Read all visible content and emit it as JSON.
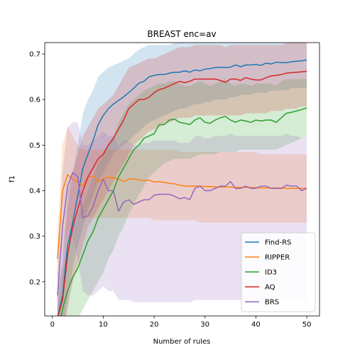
{
  "chart_data": {
    "type": "line",
    "title": "BREAST enc=av",
    "xlabel": "Number of rules",
    "ylabel": "f1",
    "xlim": [
      -1.5,
      52.5
    ],
    "ylim": [
      0.125,
      0.725
    ],
    "xticks": [
      0,
      10,
      20,
      30,
      40,
      50
    ],
    "yticks": [
      0.2,
      0.3,
      0.4,
      0.5,
      0.6,
      0.7
    ],
    "legend_position": "lower-right",
    "grid": false,
    "series": [
      {
        "name": "Find-RS",
        "color": "#1f77b4",
        "x": [
          1,
          2,
          3,
          4,
          5,
          6,
          7,
          8,
          9,
          10,
          11,
          12,
          13,
          14,
          15,
          16,
          17,
          18,
          19,
          20,
          21,
          22,
          23,
          24,
          25,
          26,
          27,
          28,
          29,
          30,
          31,
          32,
          33,
          34,
          35,
          36,
          37,
          38,
          39,
          40,
          41,
          42,
          43,
          44,
          45,
          46,
          47,
          48,
          49,
          50
        ],
        "y": [
          0.12,
          0.17,
          0.28,
          0.33,
          0.39,
          0.45,
          0.48,
          0.51,
          0.545,
          0.565,
          0.58,
          0.59,
          0.598,
          0.606,
          0.615,
          0.625,
          0.636,
          0.64,
          0.65,
          0.653,
          0.655,
          0.655,
          0.658,
          0.66,
          0.66,
          0.663,
          0.66,
          0.665,
          0.663,
          0.667,
          0.668,
          0.67,
          0.671,
          0.67,
          0.671,
          0.676,
          0.672,
          0.676,
          0.676,
          0.677,
          0.675,
          0.68,
          0.678,
          0.682,
          0.681,
          0.681,
          0.683,
          0.684,
          0.685,
          0.687
        ],
        "lower": [
          0.06,
          0.08,
          0.16,
          0.23,
          0.28,
          0.32,
          0.36,
          0.39,
          0.42,
          0.44,
          0.46,
          0.48,
          0.49,
          0.5,
          0.51,
          0.52,
          0.53,
          0.54,
          0.55,
          0.555,
          0.56,
          0.565,
          0.57,
          0.575,
          0.58,
          0.58,
          0.585,
          0.59,
          0.59,
          0.595,
          0.595,
          0.6,
          0.6,
          0.6,
          0.605,
          0.605,
          0.61,
          0.61,
          0.61,
          0.615,
          0.615,
          0.615,
          0.62,
          0.62,
          0.62,
          0.62,
          0.625,
          0.625,
          0.625,
          0.625
        ],
        "upper": [
          0.18,
          0.26,
          0.4,
          0.44,
          0.5,
          0.57,
          0.6,
          0.62,
          0.65,
          0.66,
          0.67,
          0.675,
          0.68,
          0.685,
          0.69,
          0.7,
          0.71,
          0.715,
          0.72,
          0.72,
          0.72,
          0.72,
          0.72,
          0.725,
          0.725,
          0.725,
          0.725,
          0.725,
          0.725,
          0.725,
          0.725,
          0.725,
          0.725,
          0.725,
          0.725,
          0.725,
          0.725,
          0.725,
          0.725,
          0.725,
          0.725,
          0.725,
          0.725,
          0.725,
          0.725,
          0.725,
          0.725,
          0.725,
          0.725,
          0.725
        ]
      },
      {
        "name": "RIPPER",
        "color": "#ff7f0e",
        "x": [
          1,
          2,
          3,
          4,
          5,
          6,
          7,
          8,
          9,
          10,
          11,
          12,
          13,
          14,
          15,
          16,
          17,
          18,
          19,
          20,
          21,
          22,
          23,
          24,
          25,
          26,
          27,
          28,
          29,
          30,
          31,
          32,
          33,
          34,
          35,
          36,
          37,
          38,
          39,
          40,
          41,
          42,
          43,
          44,
          45,
          46,
          47,
          48,
          49,
          50
        ],
        "y": [
          0.25,
          0.4,
          0.435,
          0.425,
          0.42,
          0.41,
          0.43,
          0.432,
          0.42,
          0.425,
          0.43,
          0.428,
          0.426,
          0.42,
          0.425,
          0.426,
          0.424,
          0.422,
          0.423,
          0.419,
          0.42,
          0.418,
          0.416,
          0.415,
          0.412,
          0.41,
          0.41,
          0.41,
          0.41,
          0.409,
          0.409,
          0.408,
          0.408,
          0.408,
          0.408,
          0.407,
          0.407,
          0.407,
          0.407,
          0.407,
          0.406,
          0.406,
          0.406,
          0.406,
          0.406,
          0.405,
          0.405,
          0.405,
          0.405,
          0.405
        ],
        "lower": [
          0.2,
          0.26,
          0.31,
          0.33,
          0.34,
          0.34,
          0.34,
          0.34,
          0.34,
          0.34,
          0.34,
          0.34,
          0.34,
          0.34,
          0.34,
          0.34,
          0.34,
          0.34,
          0.34,
          0.335,
          0.335,
          0.335,
          0.335,
          0.335,
          0.335,
          0.335,
          0.335,
          0.335,
          0.33,
          0.33,
          0.33,
          0.33,
          0.33,
          0.33,
          0.33,
          0.33,
          0.33,
          0.33,
          0.33,
          0.33,
          0.33,
          0.33,
          0.33,
          0.33,
          0.33,
          0.33,
          0.33,
          0.33,
          0.33,
          0.33
        ],
        "upper": [
          0.3,
          0.5,
          0.54,
          0.52,
          0.5,
          0.49,
          0.49,
          0.49,
          0.49,
          0.49,
          0.49,
          0.49,
          0.49,
          0.49,
          0.49,
          0.49,
          0.49,
          0.49,
          0.49,
          0.49,
          0.49,
          0.49,
          0.49,
          0.49,
          0.485,
          0.485,
          0.485,
          0.485,
          0.485,
          0.485,
          0.485,
          0.485,
          0.485,
          0.485,
          0.485,
          0.485,
          0.485,
          0.485,
          0.485,
          0.485,
          0.48,
          0.48,
          0.48,
          0.48,
          0.48,
          0.48,
          0.48,
          0.48,
          0.48,
          0.48
        ]
      },
      {
        "name": "ID3",
        "color": "#2ca02c",
        "x": [
          1,
          2,
          3,
          4,
          5,
          6,
          7,
          8,
          9,
          10,
          11,
          12,
          13,
          14,
          15,
          16,
          17,
          18,
          19,
          20,
          21,
          22,
          23,
          24,
          25,
          26,
          27,
          28,
          29,
          30,
          31,
          32,
          33,
          34,
          35,
          36,
          37,
          38,
          39,
          40,
          41,
          42,
          43,
          44,
          45,
          46,
          47,
          48,
          49,
          50
        ],
        "y": [
          0.08,
          0.14,
          0.18,
          0.21,
          0.23,
          0.26,
          0.29,
          0.31,
          0.34,
          0.36,
          0.38,
          0.4,
          0.43,
          0.45,
          0.47,
          0.49,
          0.5,
          0.515,
          0.52,
          0.525,
          0.545,
          0.545,
          0.555,
          0.557,
          0.55,
          0.548,
          0.545,
          0.555,
          0.56,
          0.55,
          0.548,
          0.555,
          0.56,
          0.563,
          0.555,
          0.55,
          0.555,
          0.553,
          0.55,
          0.555,
          0.553,
          0.555,
          0.555,
          0.55,
          0.56,
          0.57,
          0.572,
          0.575,
          0.578,
          0.582
        ],
        "lower": [
          0.02,
          0.05,
          0.08,
          0.1,
          0.12,
          0.14,
          0.16,
          0.18,
          0.2,
          0.22,
          0.25,
          0.27,
          0.3,
          0.32,
          0.35,
          0.37,
          0.39,
          0.41,
          0.43,
          0.44,
          0.45,
          0.46,
          0.465,
          0.47,
          0.47,
          0.47,
          0.47,
          0.475,
          0.48,
          0.48,
          0.48,
          0.48,
          0.485,
          0.485,
          0.485,
          0.485,
          0.49,
          0.49,
          0.49,
          0.49,
          0.49,
          0.49,
          0.49,
          0.49,
          0.495,
          0.5,
          0.505,
          0.51,
          0.515,
          0.52
        ],
        "upper": [
          0.14,
          0.22,
          0.28,
          0.32,
          0.34,
          0.37,
          0.4,
          0.43,
          0.46,
          0.48,
          0.5,
          0.52,
          0.55,
          0.57,
          0.59,
          0.6,
          0.61,
          0.62,
          0.625,
          0.63,
          0.635,
          0.635,
          0.64,
          0.64,
          0.635,
          0.63,
          0.63,
          0.635,
          0.64,
          0.635,
          0.63,
          0.635,
          0.64,
          0.645,
          0.635,
          0.63,
          0.635,
          0.635,
          0.63,
          0.635,
          0.635,
          0.635,
          0.635,
          0.63,
          0.64,
          0.645,
          0.645,
          0.645,
          0.645,
          0.645
        ]
      },
      {
        "name": "AQ",
        "color": "#d62728",
        "x": [
          1,
          2,
          3,
          4,
          5,
          6,
          7,
          8,
          9,
          10,
          11,
          12,
          13,
          14,
          15,
          16,
          17,
          18,
          19,
          20,
          21,
          22,
          23,
          24,
          25,
          26,
          27,
          28,
          29,
          30,
          31,
          32,
          33,
          34,
          35,
          36,
          37,
          38,
          39,
          40,
          41,
          42,
          43,
          44,
          45,
          46,
          47,
          48,
          49,
          50
        ],
        "y": [
          0.12,
          0.16,
          0.26,
          0.32,
          0.36,
          0.4,
          0.43,
          0.45,
          0.47,
          0.48,
          0.5,
          0.515,
          0.535,
          0.555,
          0.58,
          0.59,
          0.6,
          0.6,
          0.605,
          0.615,
          0.622,
          0.625,
          0.63,
          0.635,
          0.64,
          0.637,
          0.64,
          0.645,
          0.645,
          0.645,
          0.645,
          0.645,
          0.642,
          0.638,
          0.645,
          0.645,
          0.642,
          0.648,
          0.645,
          0.643,
          0.643,
          0.648,
          0.652,
          0.653,
          0.655,
          0.658,
          0.659,
          0.66,
          0.661,
          0.662
        ],
        "lower": [
          0.06,
          0.08,
          0.14,
          0.2,
          0.24,
          0.28,
          0.32,
          0.34,
          0.36,
          0.38,
          0.4,
          0.42,
          0.44,
          0.46,
          0.48,
          0.5,
          0.51,
          0.52,
          0.53,
          0.535,
          0.54,
          0.545,
          0.55,
          0.555,
          0.56,
          0.56,
          0.56,
          0.565,
          0.565,
          0.565,
          0.565,
          0.565,
          0.565,
          0.565,
          0.565,
          0.565,
          0.565,
          0.57,
          0.57,
          0.57,
          0.57,
          0.57,
          0.575,
          0.575,
          0.575,
          0.58,
          0.58,
          0.58,
          0.585,
          0.585
        ],
        "upper": [
          0.18,
          0.24,
          0.36,
          0.44,
          0.48,
          0.52,
          0.54,
          0.56,
          0.58,
          0.59,
          0.6,
          0.61,
          0.63,
          0.65,
          0.67,
          0.675,
          0.68,
          0.685,
          0.69,
          0.69,
          0.695,
          0.7,
          0.705,
          0.71,
          0.715,
          0.715,
          0.715,
          0.72,
          0.72,
          0.72,
          0.72,
          0.72,
          0.72,
          0.715,
          0.72,
          0.72,
          0.72,
          0.72,
          0.72,
          0.72,
          0.72,
          0.72,
          0.72,
          0.72,
          0.72,
          0.725,
          0.725,
          0.725,
          0.725,
          0.725
        ]
      },
      {
        "name": "BRS",
        "color": "#9467bd",
        "x": [
          1,
          2,
          3,
          4,
          5,
          6,
          7,
          8,
          9,
          10,
          11,
          12,
          13,
          14,
          15,
          16,
          17,
          18,
          19,
          20,
          21,
          22,
          23,
          24,
          25,
          26,
          27,
          28,
          29,
          30,
          31,
          32,
          33,
          34,
          35,
          36,
          37,
          38,
          39,
          40,
          41,
          42,
          43,
          44,
          45,
          46,
          47,
          48,
          49,
          50
        ],
        "y": [
          0.17,
          0.32,
          0.41,
          0.44,
          0.43,
          0.34,
          0.345,
          0.365,
          0.4,
          0.425,
          0.4,
          0.4,
          0.355,
          0.375,
          0.38,
          0.37,
          0.375,
          0.38,
          0.38,
          0.39,
          0.392,
          0.392,
          0.392,
          0.388,
          0.382,
          0.385,
          0.38,
          0.405,
          0.41,
          0.4,
          0.4,
          0.405,
          0.41,
          0.41,
          0.42,
          0.405,
          0.405,
          0.41,
          0.405,
          0.405,
          0.41,
          0.41,
          0.405,
          0.405,
          0.405,
          0.412,
          0.41,
          0.41,
          0.4,
          0.405
        ],
        "lower": [
          0.1,
          0.2,
          0.28,
          0.3,
          0.25,
          0.18,
          0.17,
          0.17,
          0.18,
          0.19,
          0.18,
          0.18,
          0.16,
          0.16,
          0.16,
          0.155,
          0.155,
          0.155,
          0.155,
          0.155,
          0.155,
          0.155,
          0.155,
          0.155,
          0.155,
          0.155,
          0.155,
          0.16,
          0.16,
          0.16,
          0.16,
          0.16,
          0.16,
          0.16,
          0.16,
          0.16,
          0.16,
          0.16,
          0.16,
          0.16,
          0.16,
          0.16,
          0.16,
          0.16,
          0.16,
          0.16,
          0.16,
          0.16,
          0.16,
          0.16
        ],
        "upper": [
          0.24,
          0.44,
          0.54,
          0.55,
          0.55,
          0.5,
          0.5,
          0.51,
          0.52,
          0.53,
          0.52,
          0.52,
          0.5,
          0.51,
          0.51,
          0.5,
          0.5,
          0.505,
          0.505,
          0.51,
          0.51,
          0.51,
          0.51,
          0.51,
          0.505,
          0.505,
          0.505,
          0.52,
          0.52,
          0.515,
          0.515,
          0.52,
          0.52,
          0.52,
          0.525,
          0.52,
          0.52,
          0.52,
          0.52,
          0.52,
          0.52,
          0.52,
          0.52,
          0.52,
          0.52,
          0.525,
          0.52,
          0.52,
          0.515,
          0.52
        ]
      }
    ]
  }
}
